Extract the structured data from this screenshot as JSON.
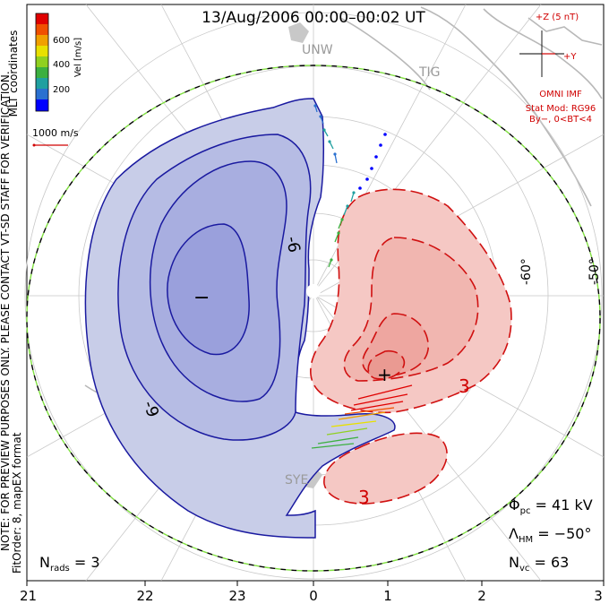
{
  "title": "13/Aug/2006 00:00–00:02 UT",
  "colorbar": {
    "label": "Vel [m/s]",
    "ticks": [
      "600",
      "400",
      "200"
    ],
    "colors": [
      "#0000ff",
      "#2a70d0",
      "#20a0a0",
      "#3cb040",
      "#90d020",
      "#e8e000",
      "#f0a000",
      "#f05000",
      "#e00000"
    ]
  },
  "coordinate_label": "MLT coordinates",
  "velocity_scale": "1000 m/s",
  "side_note": "NOTE: FOR PREVIEW PURPOSES ONLY. PLEASE CONTACT VT-SD STAFF FOR VERIFICATION.",
  "fit_order": "FitOrder: 8, mapEX format",
  "imf": {
    "top": "+Z (5 nT)",
    "right": "+Y",
    "source": "OMNI IMF",
    "model": "Stat Mod: RG96",
    "condition": "By−, 0<BT<4"
  },
  "stations": [
    "UNW",
    "TIG",
    "SYE"
  ],
  "latitude_labels": [
    "-60°",
    "-50°"
  ],
  "contour_labels": {
    "negative": [
      "-6",
      "-9"
    ],
    "positive": [
      "3",
      "3"
    ],
    "min_marker": "−",
    "max_marker": "+"
  },
  "stats": {
    "phi_pc": "41 kV",
    "lambda_hm": "−50°",
    "n_vc": "63",
    "n_rads": "3"
  },
  "mlt_ticks": [
    "21",
    "22",
    "23",
    "0",
    "1",
    "2",
    "3"
  ],
  "colors": {
    "negative_contour": "#1a1aa0",
    "negative_fill": "#c8cde8",
    "positive_contour": "#d01010",
    "positive_fill": "#f5c8c4",
    "coastline": "#b8b8b8",
    "boundary_green": "#80e040"
  }
}
